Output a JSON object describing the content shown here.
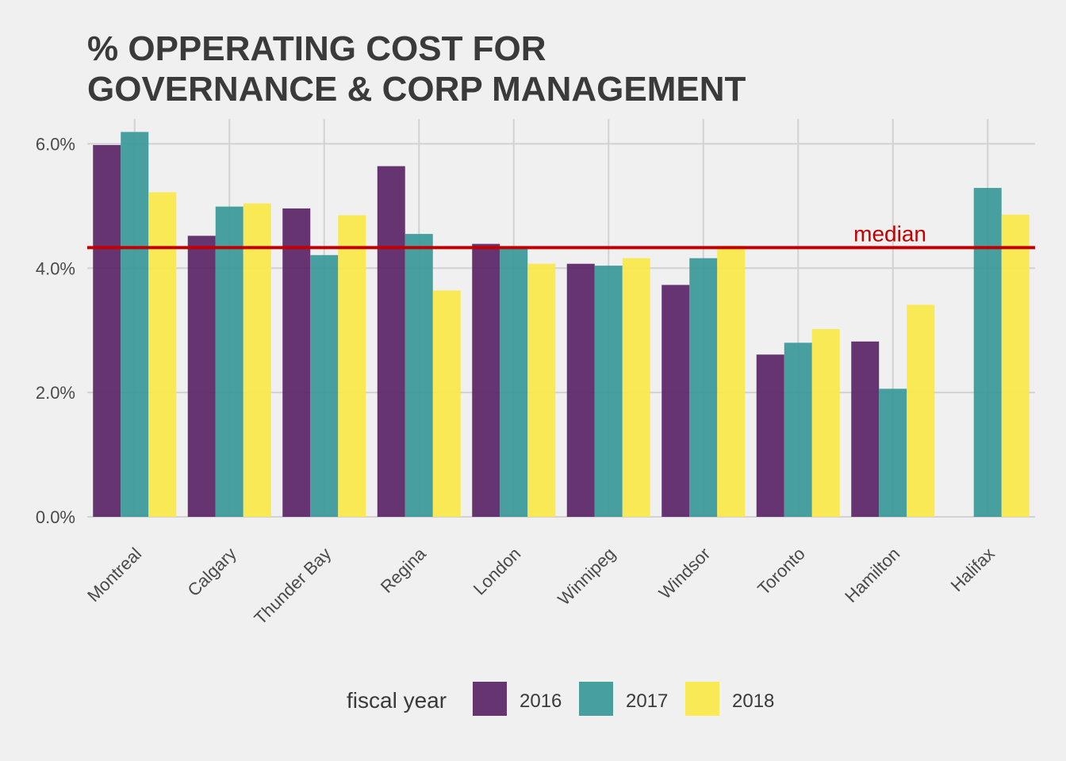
{
  "chart_data": {
    "type": "bar",
    "title_lines": [
      "% OPPERATING COST FOR",
      "GOVERNANCE & CORP MANAGEMENT"
    ],
    "xlabel": "",
    "ylabel": "",
    "categories": [
      "Montreal",
      "Calgary",
      "Thunder Bay",
      "Regina",
      "London",
      "Winnipeg",
      "Windsor",
      "Toronto",
      "Hamilton",
      "Halifax"
    ],
    "series": [
      {
        "name": "2016",
        "color": "#5a2466",
        "values": [
          5.98,
          4.52,
          4.96,
          5.64,
          4.39,
          4.07,
          3.73,
          2.61,
          2.82,
          null
        ]
      },
      {
        "name": "2017",
        "color": "#3a9898",
        "values": [
          6.19,
          4.99,
          4.21,
          4.55,
          4.33,
          4.04,
          4.16,
          2.8,
          2.06,
          5.29
        ]
      },
      {
        "name": "2018",
        "color": "#fae847",
        "values": [
          5.22,
          5.04,
          4.85,
          3.64,
          4.07,
          4.16,
          4.36,
          3.02,
          3.41,
          4.86
        ]
      }
    ],
    "ylim": [
      0,
      6.4
    ],
    "yticks": [
      0,
      2,
      4,
      6
    ],
    "ytick_labels": [
      "0.0%",
      "2.0%",
      "4.0%",
      "6.0%"
    ],
    "median": {
      "value": 4.33,
      "label": "median",
      "color": "#c00000"
    },
    "legend": {
      "title": "fiscal year",
      "position": "bottom"
    },
    "grid": true
  }
}
